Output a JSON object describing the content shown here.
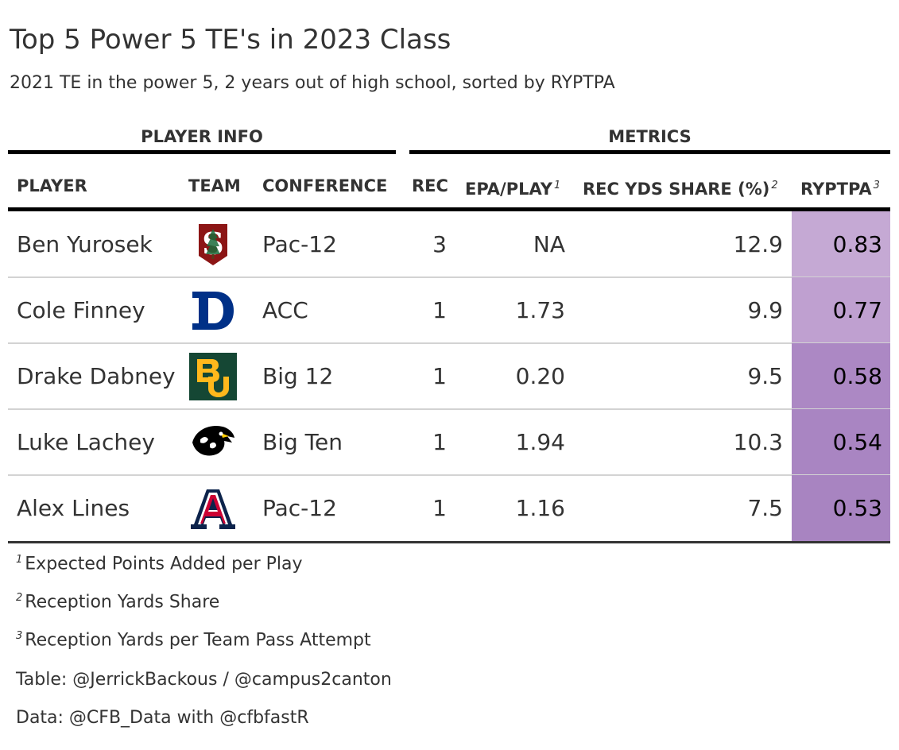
{
  "title": "Top 5 Power 5 TE's in 2023 Class",
  "subtitle": "2021 TE in the power 5, 2 years out of high school, sorted by RYPTPA",
  "spanners": {
    "left": "PLAYER INFO",
    "right": "METRICS"
  },
  "columns": {
    "player": "PLAYER",
    "team": "TEAM",
    "conference": "CONFERENCE",
    "rec": "REC",
    "epa": "EPA/PLAY",
    "epa_note": "1",
    "share": "REC YDS SHARE (%)",
    "share_note": "2",
    "ryptpa": "RYPTPA",
    "ryptpa_note": "3"
  },
  "chart_data": {
    "type": "table",
    "rows": [
      {
        "player": "Ben Yurosek",
        "team_logo": "stanford-logo",
        "conference": "Pac-12",
        "rec": "3",
        "epa": "NA",
        "share": "12.9",
        "ryptpa": "0.83",
        "ryptpa_color": "#c5a9d4"
      },
      {
        "player": "Cole Finney",
        "team_logo": "duke-logo",
        "conference": "ACC",
        "rec": "1",
        "epa": "1.73",
        "share": "9.9",
        "ryptpa": "0.77",
        "ryptpa_color": "#bfa0d0"
      },
      {
        "player": "Drake Dabney",
        "team_logo": "baylor-logo",
        "conference": "Big 12",
        "rec": "1",
        "epa": "0.20",
        "share": "9.5",
        "ryptpa": "0.58",
        "ryptpa_color": "#ac88c4"
      },
      {
        "player": "Luke Lachey",
        "team_logo": "iowa-logo",
        "conference": "Big Ten",
        "rec": "1",
        "epa": "1.94",
        "share": "10.3",
        "ryptpa": "0.54",
        "ryptpa_color": "#a985c2"
      },
      {
        "player": "Alex Lines",
        "team_logo": "arizona-logo",
        "conference": "Pac-12",
        "rec": "1",
        "epa": "1.16",
        "share": "7.5",
        "ryptpa": "0.53",
        "ryptpa_color": "#a884c1"
      }
    ]
  },
  "footnotes": [
    {
      "mark": "1",
      "text": "Expected Points Added per Play"
    },
    {
      "mark": "2",
      "text": "Reception Yards Share"
    },
    {
      "mark": "3",
      "text": "Reception Yards per Team Pass Attempt"
    }
  ],
  "source_notes": [
    "Table: @JerrickBackous / @campus2canton",
    "Data: @CFB_Data with @cfbfastR"
  ],
  "colors": {
    "stanford": "#8c1515",
    "duke": "#003087",
    "baylor": "#154734",
    "baylor_gold": "#ffb81c",
    "arizona_red": "#cc0033",
    "arizona_blue": "#0c234b"
  }
}
